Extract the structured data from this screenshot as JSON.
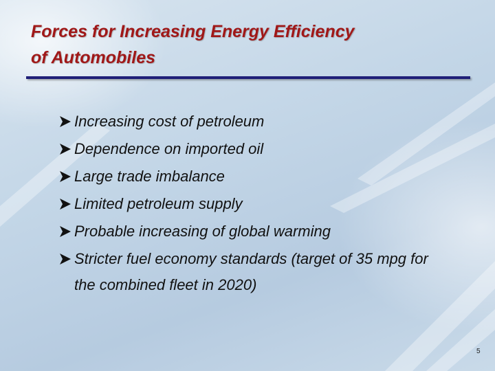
{
  "title_lines": [
    "Forces for Increasing Energy Efficiency",
    "of Automobiles"
  ],
  "bullets": [
    "Increasing cost of petroleum",
    "Dependence on imported oil",
    "Large trade imbalance",
    "Limited petroleum supply",
    "Probable increasing of global warming",
    "Stricter fuel economy standards (target of 35 mpg for the combined fleet in 2020)"
  ],
  "page_number": "5"
}
